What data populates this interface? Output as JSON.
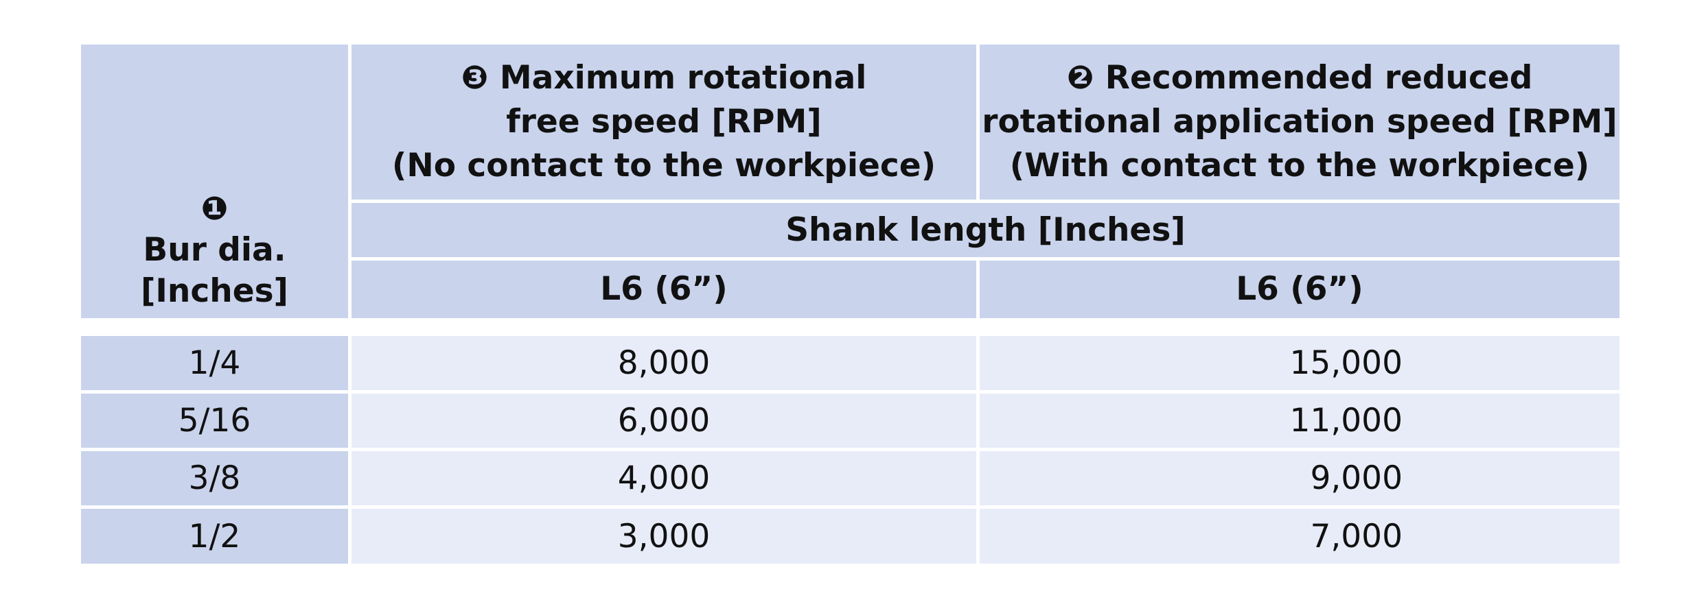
{
  "table": {
    "corner": {
      "marker": "❶",
      "line1": "Bur dia.",
      "line2": "[Inches]"
    },
    "col_max": {
      "marker": "❸",
      "line1": "Maximum rotational",
      "line2": "free speed [RPM]",
      "line3": "(No contact to the workpiece)"
    },
    "col_rec": {
      "marker": "❷",
      "line1": "Recommended reduced",
      "line2": "rotational application speed [RPM]",
      "line3": "(With contact to the workpiece)"
    },
    "shank_header": "Shank length [Inches]",
    "sub_max": "L6 (6”)",
    "sub_rec": "L6 (6”)",
    "rows": [
      {
        "dia": "1/4",
        "max": "8,000",
        "rec": "15,000"
      },
      {
        "dia": "5/16",
        "max": "6,000",
        "rec": "11,000"
      },
      {
        "dia": "3/8",
        "max": "4,000",
        "rec": "9,000"
      },
      {
        "dia": "1/2",
        "max": "3,000",
        "rec": "7,000"
      }
    ]
  }
}
